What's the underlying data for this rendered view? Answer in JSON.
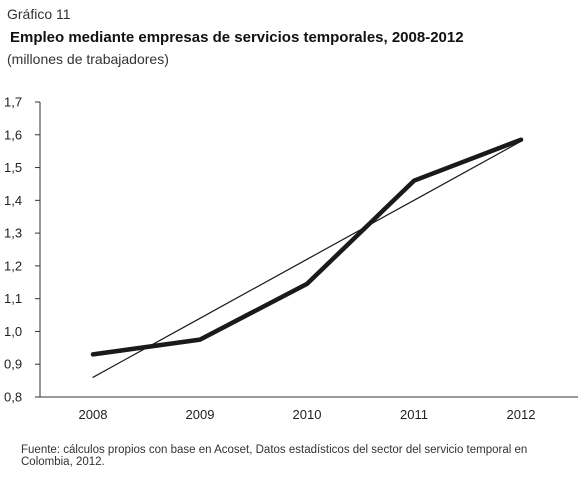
{
  "figure": {
    "label": "Gráfico 11",
    "title": "Empleo mediante empresas de servicios temporales, 2008-2012",
    "subtitle": "(millones de trabajadores)",
    "source": "Fuente: cálculos propios con base en Acoset, Datos estadísticos del sector del servicio temporal en Colombia, 2012."
  },
  "chart_data": {
    "type": "line",
    "title": "Empleo mediante empresas de servicios temporales, 2008-2012",
    "xlabel": "",
    "ylabel": "",
    "categories": [
      "2008",
      "2009",
      "2010",
      "2011",
      "2012"
    ],
    "ylim": [
      0.8,
      1.7
    ],
    "yticks": [
      "0,8",
      "0,9",
      "1,0",
      "1,1",
      "1,2",
      "1,3",
      "1,4",
      "1,5",
      "1,6",
      "1,7"
    ],
    "yticks_values": [
      0.8,
      0.9,
      1.0,
      1.1,
      1.2,
      1.3,
      1.4,
      1.5,
      1.6,
      1.7
    ],
    "grid": false,
    "legend": "none",
    "series": [
      {
        "values": [
          0.93,
          0.975,
          1.145,
          1.46,
          1.585
        ],
        "color": "#1a1a1a",
        "style": "thick"
      },
      {
        "values": [
          0.86,
          1.04,
          1.22,
          1.4,
          1.58
        ],
        "color": "#1a1a1a",
        "style": "thin"
      }
    ]
  }
}
